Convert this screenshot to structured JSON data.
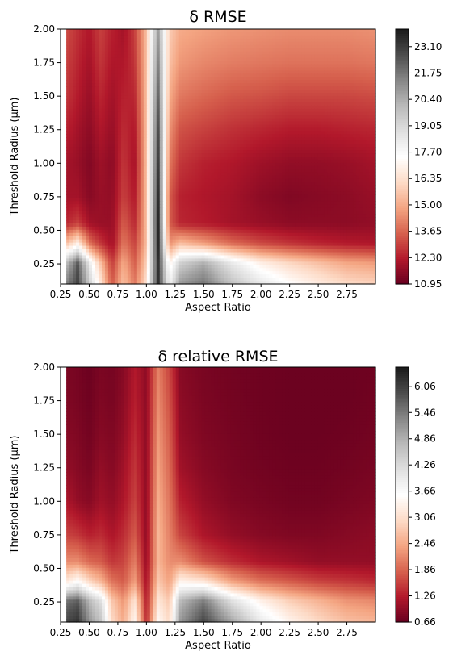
{
  "chart_data": [
    {
      "type": "heatmap",
      "title": "δ RMSE",
      "xlabel": "Aspect Ratio",
      "ylabel": "Threshold Radius (μm)",
      "xlim": [
        0.25,
        3.0
      ],
      "ylim": [
        0.1,
        2.0
      ],
      "x_ticks": [
        "0.25",
        "0.50",
        "0.75",
        "1.00",
        "1.25",
        "1.50",
        "1.75",
        "2.00",
        "2.25",
        "2.50",
        "2.75"
      ],
      "y_ticks": [
        "0.25",
        "0.50",
        "0.75",
        "1.00",
        "1.25",
        "1.50",
        "1.75",
        "2.00"
      ],
      "colorbar_ticks": [
        "10.95",
        "12.30",
        "13.65",
        "15.00",
        "16.35",
        "17.70",
        "19.05",
        "20.40",
        "21.75",
        "23.10"
      ],
      "colorbar_range": [
        10.95,
        24.0
      ],
      "colormap": "RdGy",
      "x": [
        0.3,
        0.4,
        0.5,
        0.6,
        0.7,
        0.8,
        0.9,
        1.0,
        1.1,
        1.2,
        1.3,
        1.5,
        1.75,
        2.0,
        2.25,
        2.5,
        2.75,
        3.0
      ],
      "y": [
        0.1,
        0.25,
        0.4,
        0.55,
        0.75,
        1.0,
        1.25,
        1.5,
        1.75,
        2.0
      ],
      "z": [
        [
          21.5,
          23.0,
          19.5,
          16.5,
          13.5,
          15.5,
          14.0,
          16.5,
          23.5,
          18.0,
          21.0,
          21.8,
          19.8,
          18.5,
          17.5,
          16.8,
          16.2,
          16.0
        ],
        [
          20.0,
          22.5,
          18.5,
          15.5,
          13.0,
          15.0,
          13.5,
          16.0,
          23.5,
          17.0,
          19.5,
          20.5,
          18.5,
          17.0,
          16.2,
          15.6,
          15.0,
          14.8
        ],
        [
          15.5,
          17.0,
          14.0,
          12.8,
          12.0,
          14.0,
          13.0,
          15.5,
          23.8,
          14.5,
          15.5,
          14.8,
          13.8,
          13.2,
          12.8,
          12.5,
          12.3,
          12.2
        ],
        [
          12.5,
          13.0,
          12.0,
          11.8,
          11.8,
          13.5,
          12.5,
          15.5,
          23.8,
          13.5,
          12.5,
          12.3,
          12.0,
          11.8,
          11.6,
          11.6,
          11.6,
          11.7
        ],
        [
          12.0,
          12.0,
          11.5,
          11.8,
          11.7,
          13.0,
          12.2,
          15.5,
          23.6,
          13.5,
          12.4,
          12.2,
          12.0,
          11.6,
          11.4,
          11.5,
          11.6,
          11.8
        ],
        [
          12.0,
          11.8,
          11.4,
          11.9,
          11.6,
          12.8,
          12.0,
          15.5,
          23.2,
          14.0,
          12.8,
          12.4,
          12.2,
          11.9,
          11.7,
          11.7,
          11.8,
          12.0
        ],
        [
          12.4,
          12.0,
          11.6,
          12.2,
          11.8,
          12.6,
          12.2,
          15.5,
          22.8,
          14.5,
          13.3,
          13.0,
          12.7,
          12.5,
          12.3,
          12.3,
          12.4,
          12.5
        ],
        [
          12.8,
          12.3,
          11.8,
          12.5,
          12.0,
          12.4,
          12.5,
          15.5,
          22.2,
          15.0,
          14.0,
          13.7,
          13.4,
          13.3,
          13.1,
          13.1,
          13.1,
          13.2
        ],
        [
          13.0,
          12.5,
          12.0,
          12.8,
          12.2,
          12.2,
          12.8,
          15.5,
          21.5,
          15.5,
          14.6,
          14.3,
          14.1,
          14.0,
          13.9,
          13.9,
          13.9,
          14.0
        ],
        [
          13.2,
          12.7,
          12.2,
          13.0,
          12.4,
          12.0,
          13.0,
          15.5,
          20.8,
          15.8,
          15.0,
          14.8,
          14.6,
          14.5,
          14.4,
          14.4,
          14.4,
          14.5
        ]
      ]
    },
    {
      "type": "heatmap",
      "title": "δ relative RMSE",
      "xlabel": "Aspect Ratio",
      "ylabel": "Threshold Radius (μm)",
      "xlim": [
        0.25,
        3.0
      ],
      "ylim": [
        0.1,
        2.0
      ],
      "x_ticks": [
        "0.25",
        "0.50",
        "0.75",
        "1.00",
        "1.25",
        "1.50",
        "1.75",
        "2.00",
        "2.25",
        "2.50",
        "2.75"
      ],
      "y_ticks": [
        "0.25",
        "0.50",
        "0.75",
        "1.00",
        "1.25",
        "1.50",
        "1.75",
        "2.00"
      ],
      "colorbar_ticks": [
        "0.66",
        "1.26",
        "1.86",
        "2.46",
        "3.06",
        "3.66",
        "4.26",
        "4.86",
        "5.46",
        "6.06"
      ],
      "colorbar_range": [
        0.66,
        6.5
      ],
      "colormap": "RdGy",
      "x": [
        0.3,
        0.4,
        0.5,
        0.6,
        0.7,
        0.8,
        0.9,
        1.0,
        1.1,
        1.2,
        1.3,
        1.5,
        1.75,
        2.0,
        2.25,
        2.5,
        2.75,
        3.0
      ],
      "y": [
        0.1,
        0.25,
        0.4,
        0.55,
        0.75,
        1.0,
        1.25,
        1.5,
        1.75,
        2.0
      ],
      "z": [
        [
          6.0,
          6.2,
          5.2,
          4.6,
          3.0,
          2.5,
          3.5,
          1.3,
          3.5,
          3.0,
          5.2,
          6.0,
          5.0,
          4.0,
          3.4,
          3.0,
          2.7,
          2.6
        ],
        [
          5.6,
          5.8,
          4.8,
          4.2,
          2.8,
          2.3,
          3.2,
          1.2,
          3.2,
          2.8,
          4.8,
          5.5,
          4.2,
          3.4,
          2.9,
          2.6,
          2.3,
          2.2
        ],
        [
          3.2,
          3.6,
          3.0,
          2.6,
          2.0,
          1.8,
          2.4,
          1.1,
          2.8,
          2.4,
          3.4,
          3.2,
          2.4,
          2.0,
          1.8,
          1.6,
          1.5,
          1.4
        ],
        [
          2.2,
          2.2,
          1.9,
          1.8,
          1.5,
          1.6,
          2.1,
          1.0,
          2.6,
          2.2,
          2.2,
          1.7,
          1.4,
          1.2,
          1.1,
          1.0,
          1.0,
          1.0
        ],
        [
          1.6,
          1.5,
          1.3,
          1.4,
          1.2,
          1.4,
          1.8,
          0.95,
          2.6,
          2.1,
          1.6,
          1.2,
          1.0,
          0.9,
          0.85,
          0.85,
          0.9,
          0.95
        ],
        [
          1.2,
          1.0,
          0.9,
          1.1,
          1.0,
          1.2,
          1.6,
          0.95,
          2.5,
          2.0,
          1.3,
          1.0,
          0.85,
          0.8,
          0.75,
          0.75,
          0.8,
          0.85
        ],
        [
          1.0,
          0.9,
          0.8,
          1.0,
          0.9,
          1.1,
          1.5,
          0.95,
          2.4,
          1.9,
          1.1,
          0.9,
          0.8,
          0.75,
          0.72,
          0.72,
          0.75,
          0.8
        ],
        [
          0.9,
          0.85,
          0.75,
          0.9,
          0.85,
          1.0,
          1.4,
          0.95,
          2.3,
          1.8,
          1.0,
          0.85,
          0.78,
          0.73,
          0.7,
          0.7,
          0.72,
          0.76
        ],
        [
          0.85,
          0.8,
          0.72,
          0.85,
          0.8,
          0.95,
          1.3,
          0.95,
          2.2,
          1.7,
          0.95,
          0.82,
          0.76,
          0.72,
          0.7,
          0.7,
          0.7,
          0.74
        ],
        [
          0.82,
          0.78,
          0.7,
          0.82,
          0.78,
          0.9,
          1.25,
          0.95,
          2.1,
          1.6,
          0.9,
          0.8,
          0.75,
          0.72,
          0.7,
          0.7,
          0.7,
          0.72
        ]
      ]
    }
  ]
}
